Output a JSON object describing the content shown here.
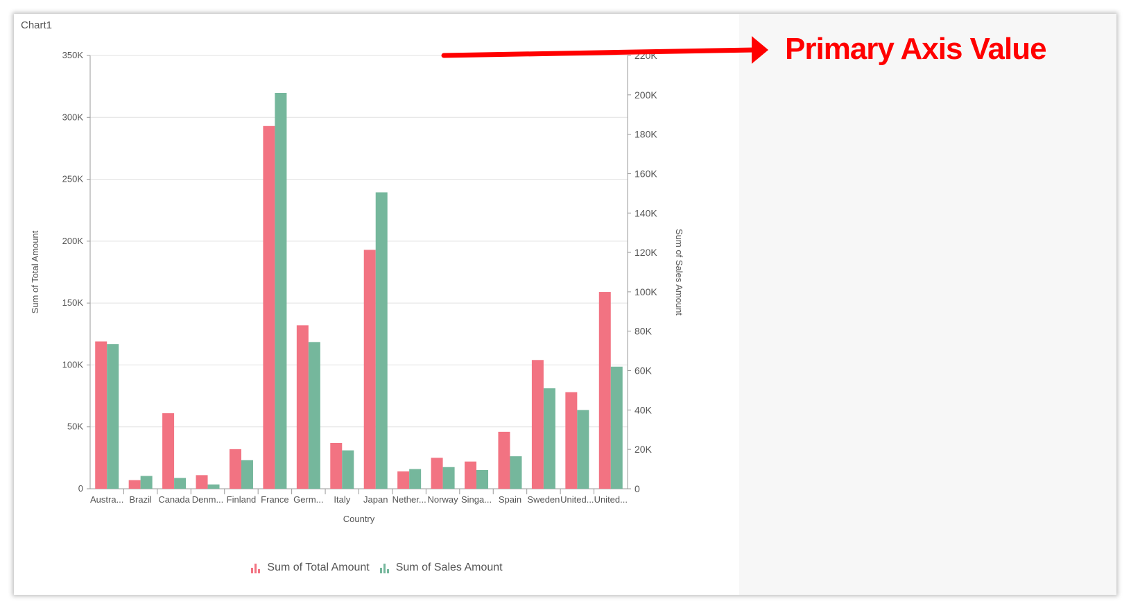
{
  "window": {
    "title": "Chart1"
  },
  "annotation": {
    "text": "Primary Axis Value",
    "color": "#ff0000"
  },
  "colors": {
    "series1": "#f27382",
    "series2": "#75b79c",
    "grid": "#e0e0e0",
    "axis": "#999999",
    "text": "#555555"
  },
  "chart_data": {
    "type": "bar",
    "title": "",
    "xlabel": "Country",
    "ylabel": "Sum of Total Amount",
    "ylabel_secondary": "Sum of Sales Amount",
    "categories": [
      "Austra...",
      "Brazil",
      "Canada",
      "Denm...",
      "Finland",
      "France",
      "Germ...",
      "Italy",
      "Japan",
      "Nether...",
      "Norway",
      "Singa...",
      "Spain",
      "Sweden",
      "United...",
      "United..."
    ],
    "ylim": [
      0,
      350000
    ],
    "ylim_secondary": [
      0,
      220000
    ],
    "yticks": [
      "0",
      "50K",
      "100K",
      "150K",
      "200K",
      "250K",
      "300K",
      "350K"
    ],
    "yticks_secondary": [
      "0",
      "20K",
      "40K",
      "60K",
      "80K",
      "100K",
      "120K",
      "140K",
      "160K",
      "180K",
      "200K",
      "220K"
    ],
    "grid": true,
    "legend_position": "bottom",
    "series": [
      {
        "name": "Sum of Total Amount",
        "axis": "primary",
        "values": [
          119000,
          7000,
          61000,
          11000,
          32000,
          293000,
          132000,
          37000,
          193000,
          14000,
          25000,
          22000,
          46000,
          104000,
          78000,
          159000
        ]
      },
      {
        "name": "Sum of Sales Amount",
        "axis": "secondary",
        "values": [
          73500,
          6500,
          5500,
          2200,
          14500,
          201000,
          74500,
          19500,
          150500,
          10000,
          11000,
          9500,
          16500,
          51000,
          40000,
          62000
        ]
      }
    ]
  }
}
